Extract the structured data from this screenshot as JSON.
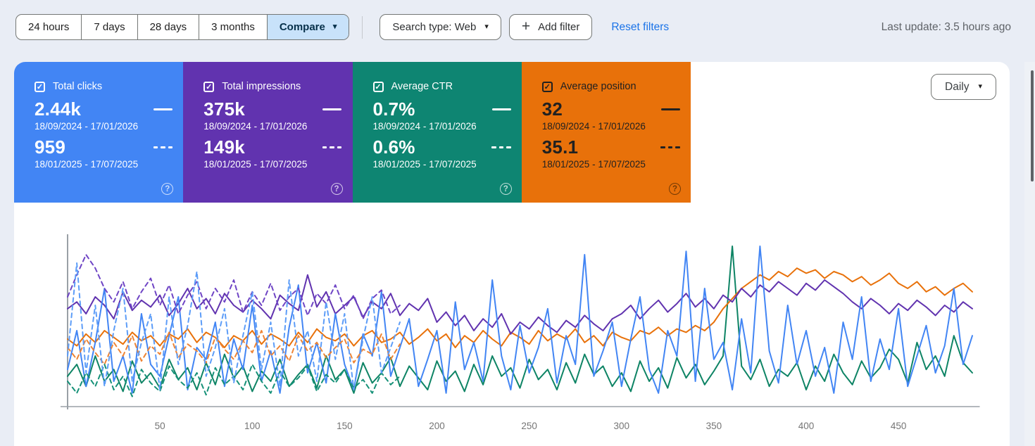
{
  "icons": {
    "check": "✓",
    "dropdown_arrow": "▾",
    "plus": "+",
    "help": "?"
  },
  "toolbar": {
    "date_tabs": [
      {
        "label": "24 hours"
      },
      {
        "label": "7 days"
      },
      {
        "label": "28 days"
      },
      {
        "label": "3 months"
      }
    ],
    "compare": {
      "label": "Compare",
      "active": true,
      "bg_color": "#c8e2fa"
    },
    "search_type": {
      "label": "Search type: Web"
    },
    "add_filter": {
      "label": "Add filter"
    },
    "reset_filters": {
      "label": "Reset filters",
      "color": "#1a73e8"
    },
    "last_update": "Last update: 3.5 hours ago"
  },
  "metric_cards": [
    {
      "label": "Total clicks",
      "checked": true,
      "color": "#4285f4",
      "text_color": "#ffffff",
      "primary_value": "2.44k",
      "primary_range": "18/09/2024 - 17/01/2026",
      "secondary_value": "959",
      "secondary_range": "18/01/2025 - 17/07/2025"
    },
    {
      "label": "Total impressions",
      "checked": true,
      "color": "#6133af",
      "text_color": "#ffffff",
      "primary_value": "375k",
      "primary_range": "18/09/2024 - 17/01/2026",
      "secondary_value": "149k",
      "secondary_range": "18/01/2025 - 17/07/2025"
    },
    {
      "label": "Average CTR",
      "checked": true,
      "color": "#0e8572",
      "text_color": "#ffffff",
      "primary_value": "0.7%",
      "primary_range": "18/09/2024 - 17/01/2026",
      "secondary_value": "0.6%",
      "secondary_range": "18/01/2025 - 17/07/2025"
    },
    {
      "label": "Average position",
      "checked": true,
      "color": "#e8710a",
      "text_color": "#212121",
      "primary_value": "32",
      "primary_range": "18/09/2024 - 17/01/2026",
      "secondary_value": "35.1",
      "secondary_range": "18/01/2025 - 17/07/2025"
    }
  ],
  "chart_controls": {
    "granularity": "Daily"
  },
  "chart_data": {
    "type": "line",
    "title": "",
    "xlabel": "",
    "ylabel": "",
    "x_unit": "day index of period",
    "x_ticks": [
      50,
      100,
      150,
      200,
      250,
      300,
      350,
      400,
      450
    ],
    "x_range": [
      0,
      494
    ],
    "y_axis_labels_shown": false,
    "y_normalized_range": [
      0,
      100
    ],
    "grid": false,
    "legend_position": "none (legend via colored metric tiles)",
    "series": [
      {
        "name": "Clicks — 18/09/2024 - 17/01/2026",
        "metric": "clicks",
        "period": "primary",
        "color": "#4285f4",
        "style": "solid",
        "x_start": 0,
        "x_step": 5,
        "values": [
          22,
          45,
          12,
          38,
          70,
          15,
          30,
          8,
          55,
          25,
          18,
          42,
          65,
          10,
          35,
          28,
          50,
          12,
          40,
          22,
          60,
          15,
          33,
          8,
          47,
          72,
          20,
          38,
          14,
          55,
          25,
          10,
          43,
          30,
          68,
          18,
          35,
          52,
          12,
          28,
          45,
          8,
          62,
          22,
          38,
          15,
          75,
          30,
          10,
          48,
          20,
          35,
          58,
          14,
          42,
          25,
          90,
          18,
          33,
          50,
          12,
          40,
          65,
          22,
          8,
          45,
          30,
          92,
          15,
          70,
          28,
          38,
          10,
          52,
          20,
          95,
          33,
          14,
          60,
          25,
          45,
          18,
          35,
          8,
          50,
          28,
          65,
          15,
          40,
          22,
          58,
          12,
          30,
          48,
          20,
          36,
          70,
          25,
          42
        ]
      },
      {
        "name": "Impressions — 18/09/2024 - 17/01/2026",
        "metric": "impressions",
        "period": "primary",
        "color": "#6133af",
        "style": "solid",
        "x_start": 0,
        "x_step": 5,
        "values": [
          58,
          62,
          55,
          65,
          60,
          52,
          68,
          57,
          63,
          59,
          66,
          54,
          61,
          70,
          58,
          64,
          55,
          67,
          60,
          56,
          63,
          58,
          52,
          66,
          61,
          57,
          78,
          59,
          68,
          55,
          60,
          65,
          53,
          62,
          58,
          67,
          54,
          61,
          57,
          64,
          50,
          56,
          48,
          54,
          45,
          52,
          47,
          55,
          43,
          50,
          46,
          53,
          48,
          44,
          51,
          47,
          54,
          49,
          45,
          52,
          55,
          60,
          52,
          58,
          63,
          56,
          61,
          67,
          59,
          64,
          58,
          66,
          62,
          70,
          65,
          72,
          68,
          74,
          70,
          66,
          73,
          69,
          75,
          71,
          67,
          62,
          58,
          64,
          60,
          55,
          61,
          57,
          63,
          59,
          54,
          60,
          56,
          62,
          58
        ]
      },
      {
        "name": "CTR — 18/09/2024 - 17/01/2026",
        "metric": "ctr",
        "period": "primary",
        "color": "#0e8465",
        "style": "solid",
        "x_start": 0,
        "x_step": 5,
        "values": [
          18,
          25,
          12,
          30,
          15,
          22,
          9,
          27,
          14,
          20,
          11,
          28,
          16,
          23,
          10,
          26,
          13,
          31,
          17,
          24,
          9,
          21,
          15,
          28,
          12,
          19,
          25,
          11,
          30,
          16,
          22,
          8,
          26,
          14,
          20,
          29,
          12,
          24,
          17,
          10,
          27,
          15,
          21,
          9,
          25,
          13,
          30,
          18,
          23,
          11,
          28,
          16,
          22,
          10,
          26,
          14,
          31,
          19,
          24,
          12,
          20,
          9,
          27,
          15,
          23,
          11,
          29,
          17,
          25,
          13,
          21,
          30,
          95,
          24,
          16,
          28,
          12,
          22,
          18,
          26,
          10,
          24,
          15,
          31,
          20,
          13,
          27,
          17,
          23,
          34,
          28,
          14,
          38,
          22,
          30,
          18,
          42,
          26,
          20
        ]
      },
      {
        "name": "Position — 18/09/2024 - 17/01/2026",
        "metric": "position",
        "period": "primary",
        "color": "#e8710a",
        "style": "solid",
        "x_start": 0,
        "x_step": 5,
        "values": [
          40,
          36,
          43,
          38,
          45,
          41,
          37,
          44,
          39,
          42,
          36,
          43,
          40,
          46,
          38,
          44,
          41,
          35,
          42,
          39,
          45,
          37,
          43,
          40,
          36,
          44,
          38,
          46,
          41,
          39,
          43,
          36,
          42,
          45,
          38,
          40,
          44,
          37,
          41,
          46,
          39,
          43,
          35,
          42,
          38,
          45,
          40,
          36,
          44,
          41,
          37,
          45,
          39,
          43,
          40,
          46,
          38,
          42,
          36,
          44,
          41,
          39,
          45,
          43,
          47,
          42,
          46,
          44,
          48,
          45,
          50,
          58,
          64,
          70,
          74,
          78,
          75,
          80,
          77,
          82,
          79,
          81,
          76,
          80,
          78,
          74,
          77,
          72,
          75,
          79,
          73,
          70,
          74,
          68,
          71,
          66,
          70,
          73,
          68
        ]
      },
      {
        "name": "Clicks — 18/01/2025 - 17/07/2025",
        "metric": "clicks",
        "period": "compare",
        "color": "#5d9df8",
        "style": "dashed",
        "x_start": 0,
        "x_step": 5,
        "values": [
          30,
          85,
          20,
          60,
          12,
          45,
          70,
          15,
          38,
          55,
          10,
          65,
          25,
          48,
          80,
          18,
          35,
          58,
          14,
          42,
          68,
          22,
          50,
          12,
          75,
          30,
          45,
          15,
          62,
          28,
          55,
          10,
          40,
          65,
          20,
          35,
          50
        ]
      },
      {
        "name": "Impressions — 18/01/2025 - 17/07/2025",
        "metric": "impressions",
        "period": "compare",
        "color": "#6f45c5",
        "style": "dashed",
        "x_start": 0,
        "x_step": 5,
        "values": [
          65,
          78,
          90,
          82,
          70,
          62,
          74,
          58,
          68,
          76,
          60,
          72,
          55,
          66,
          74,
          58,
          70,
          62,
          75,
          56,
          68,
          60,
          73,
          57,
          65,
          70,
          54,
          67,
          61,
          72,
          58,
          66,
          52,
          64,
          69,
          55,
          60
        ]
      },
      {
        "name": "CTR — 18/01/2025 - 17/07/2025",
        "metric": "ctr",
        "period": "compare",
        "color": "#169178",
        "style": "dashed",
        "x_start": 0,
        "x_step": 5,
        "values": [
          15,
          8,
          20,
          12,
          25,
          10,
          18,
          6,
          22,
          14,
          9,
          24,
          16,
          11,
          20,
          7,
          23,
          13,
          18,
          10,
          25,
          15,
          8,
          21,
          12,
          17,
          24,
          9,
          19,
          14,
          22,
          11,
          16,
          8,
          20,
          13,
          18
        ]
      },
      {
        "name": "Position — 18/01/2025 - 17/07/2025",
        "metric": "position",
        "period": "compare",
        "color": "#ee8434",
        "style": "dashed",
        "x_start": 0,
        "x_step": 5,
        "values": [
          35,
          28,
          40,
          32,
          25,
          38,
          30,
          42,
          27,
          36,
          31,
          44,
          29,
          37,
          33,
          26,
          41,
          34,
          28,
          39,
          32,
          45,
          30,
          36,
          27,
          42,
          33,
          38,
          29,
          35,
          40,
          26,
          34,
          31,
          43,
          28,
          37
        ]
      }
    ]
  }
}
